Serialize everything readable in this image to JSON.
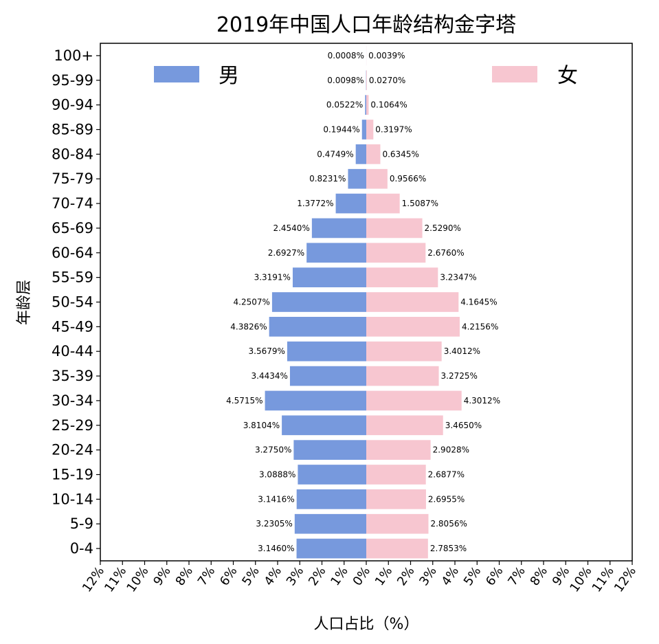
{
  "chart_data": {
    "type": "bar",
    "orientation": "horizontal",
    "title": "2019年中国人口年龄结构金字塔",
    "xlabel": "人口占比（%）",
    "ylabel": "年龄层",
    "categories": [
      "0-4",
      "5-9",
      "10-14",
      "15-19",
      "20-24",
      "25-29",
      "30-34",
      "35-39",
      "40-44",
      "45-49",
      "50-54",
      "55-59",
      "60-64",
      "65-69",
      "70-74",
      "75-79",
      "80-84",
      "85-89",
      "90-94",
      "95-99",
      "100+"
    ],
    "xlim": [
      -12,
      12
    ],
    "x_tick_labels": [
      "12%",
      "11%",
      "10%",
      "9%",
      "8%",
      "7%",
      "6%",
      "5%",
      "4%",
      "3%",
      "2%",
      "1%",
      "0%",
      "1%",
      "2%",
      "3%",
      "4%",
      "5%",
      "6%",
      "7%",
      "8%",
      "9%",
      "10%",
      "11%",
      "12%"
    ],
    "grid": false,
    "legend": "top",
    "series": [
      {
        "name": "男",
        "color": "#7799dd",
        "side": "left",
        "values": [
          3.146,
          3.2305,
          3.1416,
          3.0888,
          3.275,
          3.8104,
          4.5715,
          3.4434,
          3.5679,
          4.3826,
          4.2507,
          3.3191,
          2.6927,
          2.454,
          1.3772,
          0.8231,
          0.4749,
          0.1944,
          0.0522,
          0.0098,
          0.0008
        ],
        "labels": [
          "3.1460%",
          "3.2305%",
          "3.1416%",
          "3.0888%",
          "3.2750%",
          "3.8104%",
          "4.5715%",
          "3.4434%",
          "3.5679%",
          "4.3826%",
          "4.2507%",
          "3.3191%",
          "2.6927%",
          "2.4540%",
          "1.3772%",
          "0.8231%",
          "0.4749%",
          "0.1944%",
          "0.0522%",
          "0.0098%",
          "0.0008%"
        ]
      },
      {
        "name": "女",
        "color": "#f7c6d0",
        "side": "right",
        "values": [
          2.7853,
          2.8056,
          2.6955,
          2.6877,
          2.9028,
          3.465,
          4.3012,
          3.2725,
          3.4012,
          4.2156,
          4.1645,
          3.2347,
          2.676,
          2.529,
          1.5087,
          0.9566,
          0.6345,
          0.3197,
          0.1064,
          0.027,
          0.0039
        ],
        "labels": [
          "2.7853%",
          "2.8056%",
          "2.6955%",
          "2.6877%",
          "2.9028%",
          "3.4650%",
          "4.3012%",
          "3.2725%",
          "3.4012%",
          "4.2156%",
          "4.1645%",
          "3.2347%",
          "2.6760%",
          "2.5290%",
          "1.5087%",
          "0.9566%",
          "0.6345%",
          "0.3197%",
          "0.1064%",
          "0.0270%",
          "0.0039%"
        ]
      }
    ]
  }
}
